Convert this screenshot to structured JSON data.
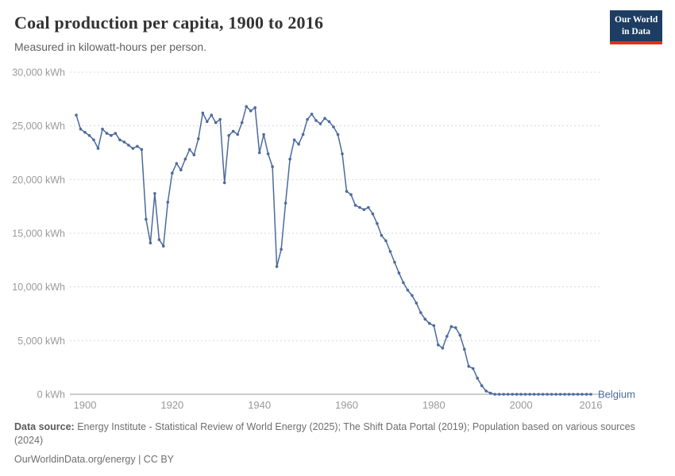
{
  "header": {
    "title": "Coal production per capita, 1900 to 2016",
    "subtitle": "Measured in kilowatt-hours per person."
  },
  "logo": {
    "line1": "Our World",
    "line2": "in Data",
    "bg_color": "#1d3d63",
    "accent_color": "#e0301e"
  },
  "footer": {
    "source_label": "Data source:",
    "source_text": " Energy Institute - Statistical Review of World Energy (2025); The Shift Data Portal (2019); Population based on various sources (2024)",
    "license": "OurWorldinData.org/energy | CC BY"
  },
  "chart_data": {
    "type": "line",
    "title": "Coal production per capita, 1900 to 2016",
    "subtitle": "Measured in kilowatt-hours per person.",
    "unit": "kWh",
    "entity": "Belgium",
    "end_label": "Belgium",
    "line_color": "#4c6a9c",
    "grid": "horizontal-dashed",
    "ylim": [
      0,
      30000
    ],
    "yticks": [
      0,
      5000,
      10000,
      15000,
      20000,
      25000,
      30000
    ],
    "ytick_suffix": " kWh",
    "xticks": [
      1900,
      1920,
      1940,
      1960,
      1980,
      2000,
      2016
    ],
    "year_start": 1898,
    "year_end": 2016,
    "values": [
      26000,
      24700,
      24400,
      24100,
      23700,
      22900,
      24700,
      24300,
      24100,
      24300,
      23700,
      23500,
      23200,
      22900,
      23100,
      22800,
      16300,
      14100,
      18700,
      14400,
      13800,
      17900,
      20600,
      21500,
      20900,
      21900,
      22800,
      22300,
      23800,
      26200,
      25400,
      26000,
      25300,
      25600,
      19700,
      24100,
      24500,
      24200,
      25300,
      26800,
      26400,
      26700,
      22500,
      24200,
      22400,
      21200,
      11900,
      13500,
      17800,
      21900,
      23700,
      23300,
      24200,
      25600,
      26100,
      25500,
      25200,
      25700,
      25400,
      24900,
      24200,
      22400,
      18900,
      18600,
      17600,
      17400,
      17200,
      17400,
      16800,
      15900,
      14800,
      14300,
      13300,
      12300,
      11300,
      10400,
      9700,
      9200,
      8500,
      7600,
      7000,
      6600,
      6400,
      4600,
      4300,
      5400,
      6300,
      6200,
      5500,
      4200,
      2600,
      2400,
      1500,
      800,
      300,
      100,
      0,
      0,
      0,
      0,
      0,
      0,
      0,
      0,
      0,
      0,
      0,
      0,
      0,
      0,
      0,
      0,
      0,
      0,
      0,
      0,
      0,
      0,
      0
    ]
  }
}
